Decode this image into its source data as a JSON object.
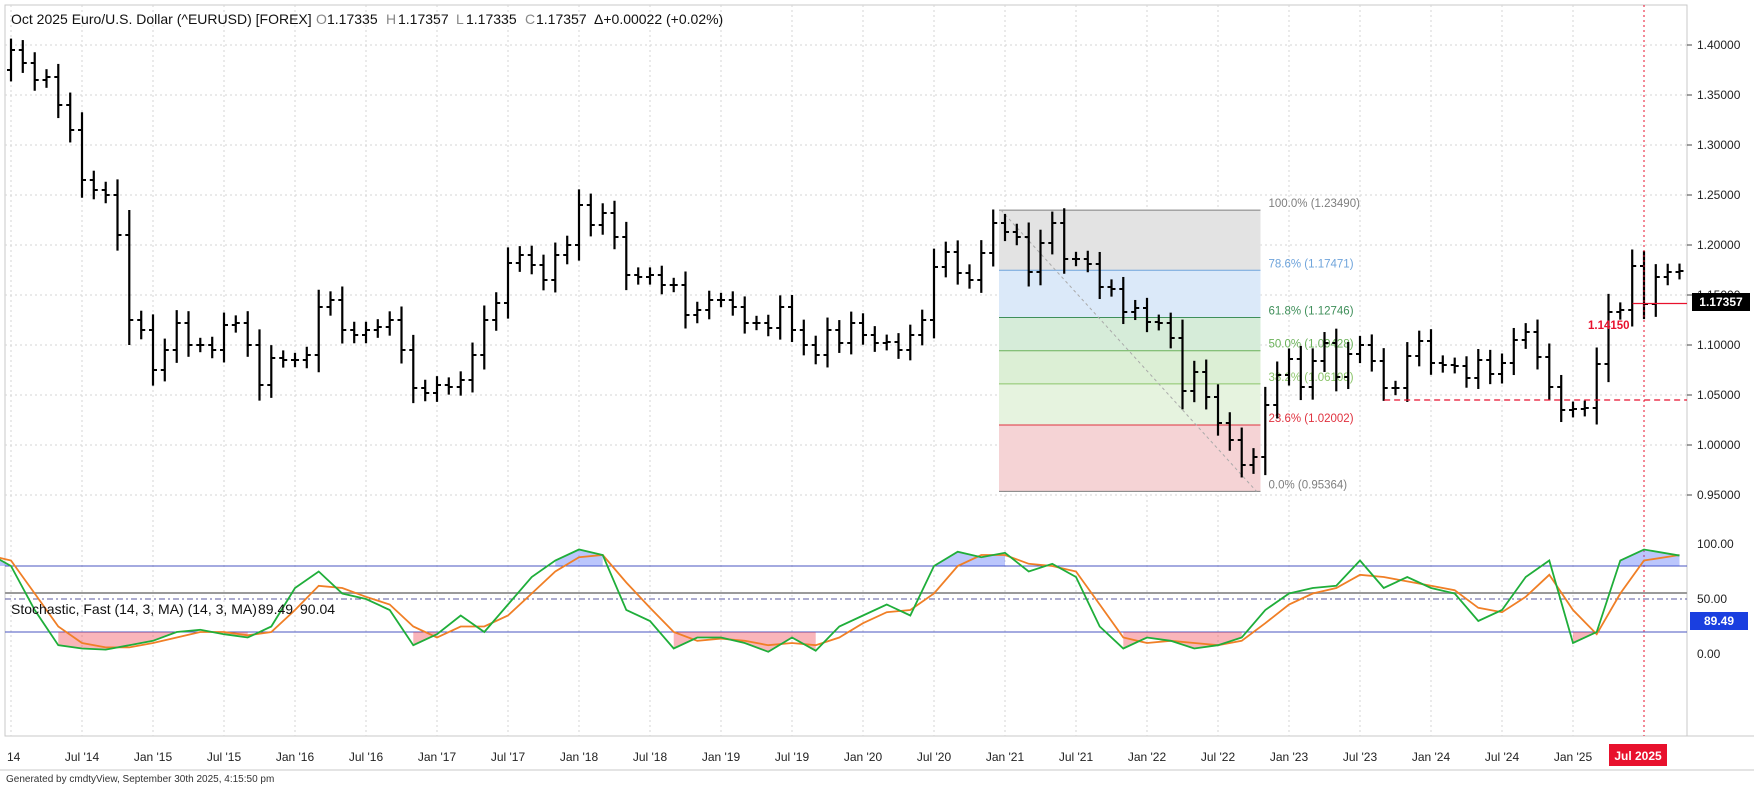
{
  "header": {
    "title": "Oct 2025  Euro/U.S. Dollar (^EURUSD) [FOREX]",
    "o_label": "O",
    "o_value": "1.17335",
    "h_label": "H",
    "h_value": "1.17357",
    "l_label": "L",
    "l_value": "1.17335",
    "c_label": "C",
    "c_value": "1.17357",
    "change": "Δ+0.00022 (+0.02%)"
  },
  "footer": "Generated by cmdtyView, September 30th 2025, 4:15:50 pm",
  "colors": {
    "price_bar": "#000000",
    "stoch_k": "#1a3fe0",
    "stoch_d": "#f07f26",
    "stoch_line": "#1fae3a",
    "overbought_fill": "#3d5cf5",
    "oversold_fill": "#ee2a3a",
    "level_line": "#b3122a",
    "current_marker_bg": "#e8112d"
  },
  "stochastic_legend": {
    "label": "Stochastic, Fast (14, 3, MA)  (14, 3, MA)",
    "k_value": "89.49",
    "d_value": "90.04",
    "last_badge": "89.49"
  },
  "price_badge": "1.17357",
  "level_label": "1.14150",
  "current_x_label": "Jul 2025",
  "chart_data": [
    {
      "type": "ohlc",
      "title": "Oct 2025  Euro/U.S. Dollar (^EURUSD) [FOREX]",
      "interval": "monthly",
      "y_ticks": [
        "1.40000",
        "1.35000",
        "1.30000",
        "1.25000",
        "1.20000",
        "1.15000",
        "1.10000",
        "1.05000",
        "1.00000",
        "0.95000"
      ],
      "ylim": [
        0.915,
        1.445
      ],
      "x_ticks": [
        "14",
        "Jul '14",
        "Jan '15",
        "Jul '15",
        "Jan '16",
        "Jul '16",
        "Jan '17",
        "Jul '17",
        "Jan '18",
        "Jul '18",
        "Jan '19",
        "Jul '19",
        "Jan '20",
        "Jul '20",
        "Jan '21",
        "Jul '21",
        "Jan '22",
        "Jul '22",
        "Jan '23",
        "Jul '23",
        "Jan '24",
        "Jul '24",
        "Jan '25"
      ],
      "x_tick_months": [
        2014.0,
        2014.5,
        2015.0,
        2015.5,
        2016.0,
        2016.5,
        2017.0,
        2017.5,
        2018.0,
        2018.5,
        2019.0,
        2019.5,
        2020.0,
        2020.5,
        2021.0,
        2021.5,
        2022.0,
        2022.5,
        2023.0,
        2023.5,
        2024.0,
        2024.5,
        2025.0
      ],
      "close_series": [
        {
          "x": 2013.667,
          "y": 1.35
        },
        {
          "x": 2013.75,
          "y": 1.38
        },
        {
          "x": 2013.833,
          "y": 1.383
        },
        {
          "x": 2013.917,
          "y": 1.375
        },
        {
          "x": 2014.0,
          "y": 1.395
        },
        {
          "x": 2014.083,
          "y": 1.382
        },
        {
          "x": 2014.167,
          "y": 1.365
        },
        {
          "x": 2014.25,
          "y": 1.368
        },
        {
          "x": 2014.333,
          "y": 1.34
        },
        {
          "x": 2014.417,
          "y": 1.315
        },
        {
          "x": 2014.5,
          "y": 1.265
        },
        {
          "x": 2014.583,
          "y": 1.255
        },
        {
          "x": 2014.667,
          "y": 1.25
        },
        {
          "x": 2014.75,
          "y": 1.21
        },
        {
          "x": 2014.833,
          "y": 1.125
        },
        {
          "x": 2014.917,
          "y": 1.115
        },
        {
          "x": 2015.0,
          "y": 1.075
        },
        {
          "x": 2015.083,
          "y": 1.095
        },
        {
          "x": 2015.167,
          "y": 1.122
        },
        {
          "x": 2015.25,
          "y": 1.1
        },
        {
          "x": 2015.333,
          "y": 1.1
        },
        {
          "x": 2015.417,
          "y": 1.095
        },
        {
          "x": 2015.5,
          "y": 1.12
        },
        {
          "x": 2015.583,
          "y": 1.122
        },
        {
          "x": 2015.667,
          "y": 1.1
        },
        {
          "x": 2015.75,
          "y": 1.06
        },
        {
          "x": 2015.833,
          "y": 1.087
        },
        {
          "x": 2015.917,
          "y": 1.085
        },
        {
          "x": 2016.0,
          "y": 1.085
        },
        {
          "x": 2016.083,
          "y": 1.09
        },
        {
          "x": 2016.167,
          "y": 1.138
        },
        {
          "x": 2016.25,
          "y": 1.145
        },
        {
          "x": 2016.333,
          "y": 1.115
        },
        {
          "x": 2016.417,
          "y": 1.11
        },
        {
          "x": 2016.5,
          "y": 1.115
        },
        {
          "x": 2016.583,
          "y": 1.118
        },
        {
          "x": 2016.667,
          "y": 1.125
        },
        {
          "x": 2016.75,
          "y": 1.095
        },
        {
          "x": 2016.833,
          "y": 1.057
        },
        {
          "x": 2016.917,
          "y": 1.052
        },
        {
          "x": 2017.0,
          "y": 1.06
        },
        {
          "x": 2017.083,
          "y": 1.058
        },
        {
          "x": 2017.167,
          "y": 1.065
        },
        {
          "x": 2017.25,
          "y": 1.09
        },
        {
          "x": 2017.333,
          "y": 1.125
        },
        {
          "x": 2017.417,
          "y": 1.142
        },
        {
          "x": 2017.5,
          "y": 1.182
        },
        {
          "x": 2017.583,
          "y": 1.19
        },
        {
          "x": 2017.667,
          "y": 1.18
        },
        {
          "x": 2017.75,
          "y": 1.165
        },
        {
          "x": 2017.833,
          "y": 1.19
        },
        {
          "x": 2017.917,
          "y": 1.2
        },
        {
          "x": 2018.0,
          "y": 1.24
        },
        {
          "x": 2018.083,
          "y": 1.22
        },
        {
          "x": 2018.167,
          "y": 1.232
        },
        {
          "x": 2018.25,
          "y": 1.208
        },
        {
          "x": 2018.333,
          "y": 1.17
        },
        {
          "x": 2018.417,
          "y": 1.168
        },
        {
          "x": 2018.5,
          "y": 1.17
        },
        {
          "x": 2018.583,
          "y": 1.16
        },
        {
          "x": 2018.667,
          "y": 1.16
        },
        {
          "x": 2018.75,
          "y": 1.13
        },
        {
          "x": 2018.833,
          "y": 1.135
        },
        {
          "x": 2018.917,
          "y": 1.145
        },
        {
          "x": 2019.0,
          "y": 1.145
        },
        {
          "x": 2019.083,
          "y": 1.138
        },
        {
          "x": 2019.167,
          "y": 1.122
        },
        {
          "x": 2019.25,
          "y": 1.122
        },
        {
          "x": 2019.333,
          "y": 1.117
        },
        {
          "x": 2019.417,
          "y": 1.138
        },
        {
          "x": 2019.5,
          "y": 1.115
        },
        {
          "x": 2019.583,
          "y": 1.1
        },
        {
          "x": 2019.667,
          "y": 1.09
        },
        {
          "x": 2019.75,
          "y": 1.115
        },
        {
          "x": 2019.833,
          "y": 1.102
        },
        {
          "x": 2019.917,
          "y": 1.122
        },
        {
          "x": 2020.0,
          "y": 1.11
        },
        {
          "x": 2020.083,
          "y": 1.102
        },
        {
          "x": 2020.167,
          "y": 1.103
        },
        {
          "x": 2020.25,
          "y": 1.095
        },
        {
          "x": 2020.333,
          "y": 1.11
        },
        {
          "x": 2020.417,
          "y": 1.125
        },
        {
          "x": 2020.5,
          "y": 1.178
        },
        {
          "x": 2020.583,
          "y": 1.193
        },
        {
          "x": 2020.667,
          "y": 1.172
        },
        {
          "x": 2020.75,
          "y": 1.165
        },
        {
          "x": 2020.833,
          "y": 1.192
        },
        {
          "x": 2020.917,
          "y": 1.222
        },
        {
          "x": 2021.0,
          "y": 1.213
        },
        {
          "x": 2021.083,
          "y": 1.208
        },
        {
          "x": 2021.167,
          "y": 1.173
        },
        {
          "x": 2021.25,
          "y": 1.202
        },
        {
          "x": 2021.333,
          "y": 1.222
        },
        {
          "x": 2021.417,
          "y": 1.186
        },
        {
          "x": 2021.5,
          "y": 1.186
        },
        {
          "x": 2021.583,
          "y": 1.181
        },
        {
          "x": 2021.667,
          "y": 1.158
        },
        {
          "x": 2021.75,
          "y": 1.156
        },
        {
          "x": 2021.833,
          "y": 1.133
        },
        {
          "x": 2021.917,
          "y": 1.137
        },
        {
          "x": 2022.0,
          "y": 1.123
        },
        {
          "x": 2022.083,
          "y": 1.122
        },
        {
          "x": 2022.167,
          "y": 1.107
        },
        {
          "x": 2022.25,
          "y": 1.054
        },
        {
          "x": 2022.333,
          "y": 1.073
        },
        {
          "x": 2022.417,
          "y": 1.048
        },
        {
          "x": 2022.5,
          "y": 1.022
        },
        {
          "x": 2022.583,
          "y": 1.005
        },
        {
          "x": 2022.667,
          "y": 0.98
        },
        {
          "x": 2022.75,
          "y": 0.988
        },
        {
          "x": 2022.833,
          "y": 1.04
        },
        {
          "x": 2022.917,
          "y": 1.07
        },
        {
          "x": 2023.0,
          "y": 1.086
        },
        {
          "x": 2023.083,
          "y": 1.058
        },
        {
          "x": 2023.167,
          "y": 1.084
        },
        {
          "x": 2023.25,
          "y": 1.102
        },
        {
          "x": 2023.333,
          "y": 1.068
        },
        {
          "x": 2023.417,
          "y": 1.091
        },
        {
          "x": 2023.5,
          "y": 1.1
        },
        {
          "x": 2023.583,
          "y": 1.084
        },
        {
          "x": 2023.667,
          "y": 1.057
        },
        {
          "x": 2023.75,
          "y": 1.057
        },
        {
          "x": 2023.833,
          "y": 1.089
        },
        {
          "x": 2023.917,
          "y": 1.104
        },
        {
          "x": 2024.0,
          "y": 1.082
        },
        {
          "x": 2024.083,
          "y": 1.08
        },
        {
          "x": 2024.167,
          "y": 1.079
        },
        {
          "x": 2024.25,
          "y": 1.067
        },
        {
          "x": 2024.333,
          "y": 1.085
        },
        {
          "x": 2024.417,
          "y": 1.071
        },
        {
          "x": 2024.5,
          "y": 1.082
        },
        {
          "x": 2024.583,
          "y": 1.105
        },
        {
          "x": 2024.667,
          "y": 1.113
        },
        {
          "x": 2024.75,
          "y": 1.088
        },
        {
          "x": 2024.833,
          "y": 1.058
        },
        {
          "x": 2024.917,
          "y": 1.035
        },
        {
          "x": 2025.0,
          "y": 1.036
        },
        {
          "x": 2025.083,
          "y": 1.037
        },
        {
          "x": 2025.167,
          "y": 1.081
        },
        {
          "x": 2025.25,
          "y": 1.133
        },
        {
          "x": 2025.333,
          "y": 1.135
        },
        {
          "x": 2025.417,
          "y": 1.179
        },
        {
          "x": 2025.5,
          "y": 1.141
        },
        {
          "x": 2025.583,
          "y": 1.168
        },
        {
          "x": 2025.667,
          "y": 1.173
        },
        {
          "x": 2025.75,
          "y": 1.174
        }
      ],
      "fibonacci": {
        "from_x": 2021.0,
        "to_x": 2022.75,
        "levels": [
          {
            "label": "100.0% (1.23490)",
            "value": 1.2349,
            "color": "#7f7f7f",
            "fill": "#e3e3e3"
          },
          {
            "label": "78.6% (1.17471)",
            "value": 1.17471,
            "color": "#6fa4db",
            "fill": "#dbe9f9"
          },
          {
            "label": "61.8% (1.12746)",
            "value": 1.12746,
            "color": "#3f8f5a",
            "fill": "#d6ecd9"
          },
          {
            "label": "50.0% (1.09428)",
            "value": 1.09428,
            "color": "#6bb25a",
            "fill": "#dcefd5"
          },
          {
            "label": "38.2% (1.06108)",
            "value": 1.06108,
            "color": "#8cc56b",
            "fill": "#e6f3df"
          },
          {
            "label": "23.6% (1.02002)",
            "value": 1.02002,
            "color": "#e0323f",
            "fill": "#f5d3d5"
          },
          {
            "label": "0.0% (0.95364)",
            "value": 0.95364,
            "color": "#7f7f7f",
            "fill": null
          }
        ]
      },
      "levels": [
        {
          "name": "1.14150",
          "value": 1.1415,
          "style": "solid",
          "from_x": 2025.42
        },
        {
          "value": 1.045,
          "style": "dashed",
          "from_x": 2023.67
        }
      ],
      "current_x": 2025.5,
      "last_price": 1.17357
    },
    {
      "type": "line",
      "title": "Stochastic, Fast (14, 3, MA)  (14, 3, MA)",
      "y_ticks": [
        "100.00",
        "50.00",
        "0.00"
      ],
      "ylim": [
        -5,
        105
      ],
      "bands": [
        20,
        50,
        80
      ],
      "series": [
        {
          "name": "%K",
          "color": "#1fae3a",
          "x": [
            2013.667,
            2013.833,
            2014.0,
            2014.167,
            2014.333,
            2014.5,
            2014.667,
            2014.833,
            2015.0,
            2015.167,
            2015.333,
            2015.5,
            2015.667,
            2015.833,
            2016.0,
            2016.167,
            2016.333,
            2016.5,
            2016.667,
            2016.833,
            2017.0,
            2017.167,
            2017.333,
            2017.5,
            2017.667,
            2017.833,
            2018.0,
            2018.167,
            2018.333,
            2018.5,
            2018.667,
            2018.833,
            2019.0,
            2019.167,
            2019.333,
            2019.5,
            2019.667,
            2019.833,
            2020.0,
            2020.167,
            2020.333,
            2020.5,
            2020.667,
            2020.833,
            2021.0,
            2021.167,
            2021.333,
            2021.5,
            2021.667,
            2021.833,
            2022.0,
            2022.167,
            2022.333,
            2022.5,
            2022.667,
            2022.833,
            2023.0,
            2023.167,
            2023.333,
            2023.5,
            2023.667,
            2023.833,
            2024.0,
            2024.167,
            2024.333,
            2024.5,
            2024.667,
            2024.833,
            2025.0,
            2025.167,
            2025.333,
            2025.5,
            2025.75
          ],
          "values": [
            90,
            92,
            80,
            40,
            8,
            5,
            4,
            8,
            12,
            20,
            22,
            18,
            15,
            25,
            60,
            75,
            55,
            50,
            40,
            8,
            18,
            35,
            20,
            45,
            70,
            85,
            95,
            90,
            40,
            30,
            5,
            15,
            15,
            10,
            2,
            15,
            3,
            25,
            35,
            45,
            35,
            80,
            93,
            88,
            92,
            75,
            82,
            70,
            25,
            5,
            15,
            12,
            5,
            8,
            15,
            40,
            55,
            60,
            62,
            85,
            60,
            70,
            60,
            55,
            30,
            40,
            70,
            85,
            10,
            20,
            85,
            95,
            89.49
          ]
        },
        {
          "name": "%D",
          "color": "#f07f26",
          "x": [
            2013.667,
            2013.833,
            2014.0,
            2014.167,
            2014.333,
            2014.5,
            2014.667,
            2014.833,
            2015.0,
            2015.167,
            2015.333,
            2015.5,
            2015.667,
            2015.833,
            2016.0,
            2016.167,
            2016.333,
            2016.5,
            2016.667,
            2016.833,
            2017.0,
            2017.167,
            2017.333,
            2017.5,
            2017.667,
            2017.833,
            2018.0,
            2018.167,
            2018.333,
            2018.5,
            2018.667,
            2018.833,
            2019.0,
            2019.167,
            2019.333,
            2019.5,
            2019.667,
            2019.833,
            2020.0,
            2020.167,
            2020.333,
            2020.5,
            2020.667,
            2020.833,
            2021.0,
            2021.167,
            2021.333,
            2021.5,
            2021.667,
            2021.833,
            2022.0,
            2022.167,
            2022.333,
            2022.5,
            2022.667,
            2022.833,
            2023.0,
            2023.167,
            2023.333,
            2023.5,
            2023.667,
            2023.833,
            2024.0,
            2024.167,
            2024.333,
            2024.5,
            2024.667,
            2024.833,
            2025.0,
            2025.167,
            2025.333,
            2025.5,
            2025.75
          ],
          "values": [
            85,
            90,
            85,
            55,
            25,
            10,
            6,
            6,
            10,
            15,
            20,
            20,
            17,
            20,
            40,
            62,
            60,
            52,
            45,
            25,
            15,
            25,
            25,
            35,
            55,
            75,
            88,
            90,
            65,
            42,
            20,
            12,
            14,
            12,
            8,
            10,
            8,
            15,
            28,
            38,
            40,
            55,
            80,
            90,
            90,
            82,
            80,
            75,
            45,
            15,
            10,
            12,
            10,
            8,
            12,
            28,
            45,
            55,
            60,
            72,
            70,
            66,
            62,
            58,
            42,
            38,
            52,
            72,
            40,
            18,
            55,
            85,
            90.04
          ]
        }
      ]
    }
  ]
}
